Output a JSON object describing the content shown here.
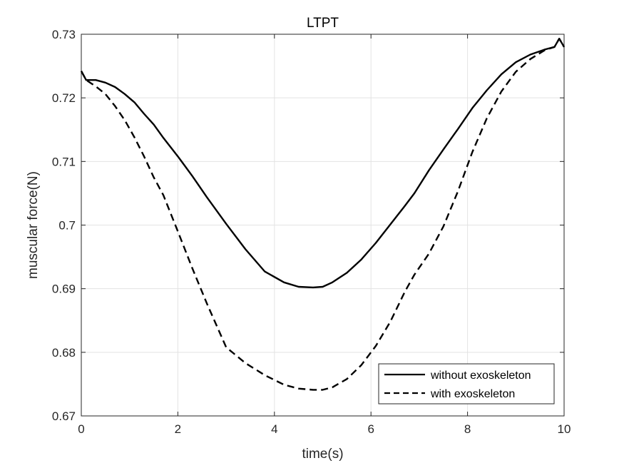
{
  "chart_data": {
    "type": "line",
    "title": "LTPT",
    "xlabel": "time(s)",
    "ylabel": "muscular force(N)",
    "xlim": [
      0,
      10
    ],
    "ylim": [
      0.67,
      0.73
    ],
    "xticks": [
      0,
      2,
      4,
      6,
      8,
      10
    ],
    "xtick_labels": [
      "0",
      "2",
      "4",
      "6",
      "8",
      "10"
    ],
    "yticks": [
      0.67,
      0.68,
      0.69,
      0.7,
      0.71,
      0.72,
      0.73
    ],
    "ytick_labels": [
      "0.67",
      "0.68",
      "0.69",
      "0.7",
      "0.71",
      "0.72",
      "0.73"
    ],
    "grid": true,
    "legend_position": "bottom-right",
    "series": [
      {
        "name": "without exoskeleton",
        "style": "solid",
        "color": "#000000",
        "x": [
          0,
          0.1,
          0.3,
          0.5,
          0.7,
          0.9,
          1.1,
          1.3,
          1.5,
          1.7,
          2.0,
          2.3,
          2.6,
          3.0,
          3.4,
          3.8,
          4.2,
          4.5,
          4.8,
          5.0,
          5.2,
          5.5,
          5.8,
          6.1,
          6.4,
          6.7,
          6.9,
          7.2,
          7.5,
          7.8,
          8.1,
          8.4,
          8.7,
          9.0,
          9.3,
          9.6,
          9.8,
          9.9,
          10.0
        ],
        "y": [
          0.7242,
          0.7228,
          0.7228,
          0.7224,
          0.7217,
          0.7206,
          0.7193,
          0.7175,
          0.7158,
          0.7137,
          0.7108,
          0.7077,
          0.7044,
          0.7002,
          0.6962,
          0.6927,
          0.691,
          0.6903,
          0.6902,
          0.6903,
          0.691,
          0.6925,
          0.6946,
          0.6972,
          0.7001,
          0.703,
          0.705,
          0.7086,
          0.7119,
          0.7151,
          0.7184,
          0.7212,
          0.7237,
          0.7256,
          0.7268,
          0.7276,
          0.728,
          0.7293,
          0.728
        ]
      },
      {
        "name": "with exoskeleton",
        "style": "dashed",
        "color": "#000000",
        "x": [
          0,
          0.1,
          0.3,
          0.5,
          0.7,
          0.9,
          1.1,
          1.3,
          1.5,
          1.7,
          2.0,
          2.3,
          2.6,
          3.0,
          3.4,
          3.8,
          4.2,
          4.5,
          4.8,
          5.0,
          5.2,
          5.5,
          5.8,
          6.1,
          6.4,
          6.7,
          6.9,
          7.2,
          7.5,
          7.8,
          8.1,
          8.4,
          8.7,
          9.0,
          9.3,
          9.6,
          9.8,
          9.9,
          10.0
        ],
        "y": [
          0.7242,
          0.7228,
          0.7218,
          0.7206,
          0.7187,
          0.7165,
          0.7138,
          0.7108,
          0.7075,
          0.7047,
          0.699,
          0.6932,
          0.6877,
          0.6808,
          0.6783,
          0.6764,
          0.6749,
          0.6743,
          0.6741,
          0.6741,
          0.6745,
          0.6758,
          0.678,
          0.681,
          0.6848,
          0.6895,
          0.6922,
          0.6955,
          0.6998,
          0.7053,
          0.7115,
          0.7168,
          0.721,
          0.7241,
          0.7261,
          0.7275,
          0.728,
          0.7293,
          0.728
        ]
      }
    ]
  }
}
